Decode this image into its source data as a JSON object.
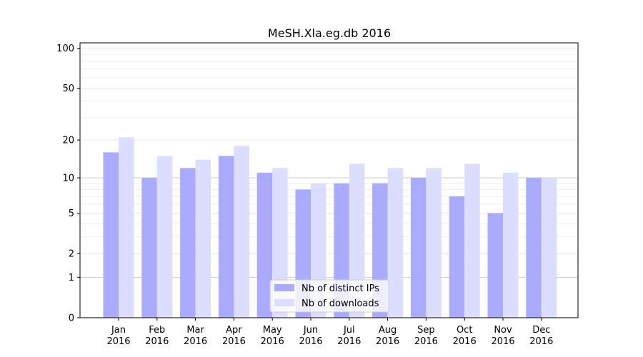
{
  "chart_data": {
    "type": "bar",
    "title": "MeSH.Xla.eg.db 2016",
    "xlabel": "",
    "ylabel": "",
    "y_scale": "log(1+y)",
    "ylim": [
      0,
      110
    ],
    "y_ticks": [
      0,
      1,
      2,
      5,
      10,
      20,
      50,
      100
    ],
    "grid": "y",
    "legend_position": "bottom-center",
    "categories": [
      "Jan\n2016",
      "Feb\n2016",
      "Mar\n2016",
      "Apr\n2016",
      "May\n2016",
      "Jun\n2016",
      "Jul\n2016",
      "Aug\n2016",
      "Sep\n2016",
      "Oct\n2016",
      "Nov\n2016",
      "Dec\n2016"
    ],
    "series": [
      {
        "name": "Nb of distinct IPs",
        "color": "#aaaaff",
        "values": [
          16,
          10,
          12,
          15,
          11,
          8,
          9,
          9,
          10,
          7,
          5,
          10
        ]
      },
      {
        "name": "Nb of downloads",
        "color": "#ddddff",
        "values": [
          21,
          15,
          14,
          18,
          12,
          9,
          13,
          12,
          12,
          13,
          11,
          10
        ]
      }
    ]
  }
}
